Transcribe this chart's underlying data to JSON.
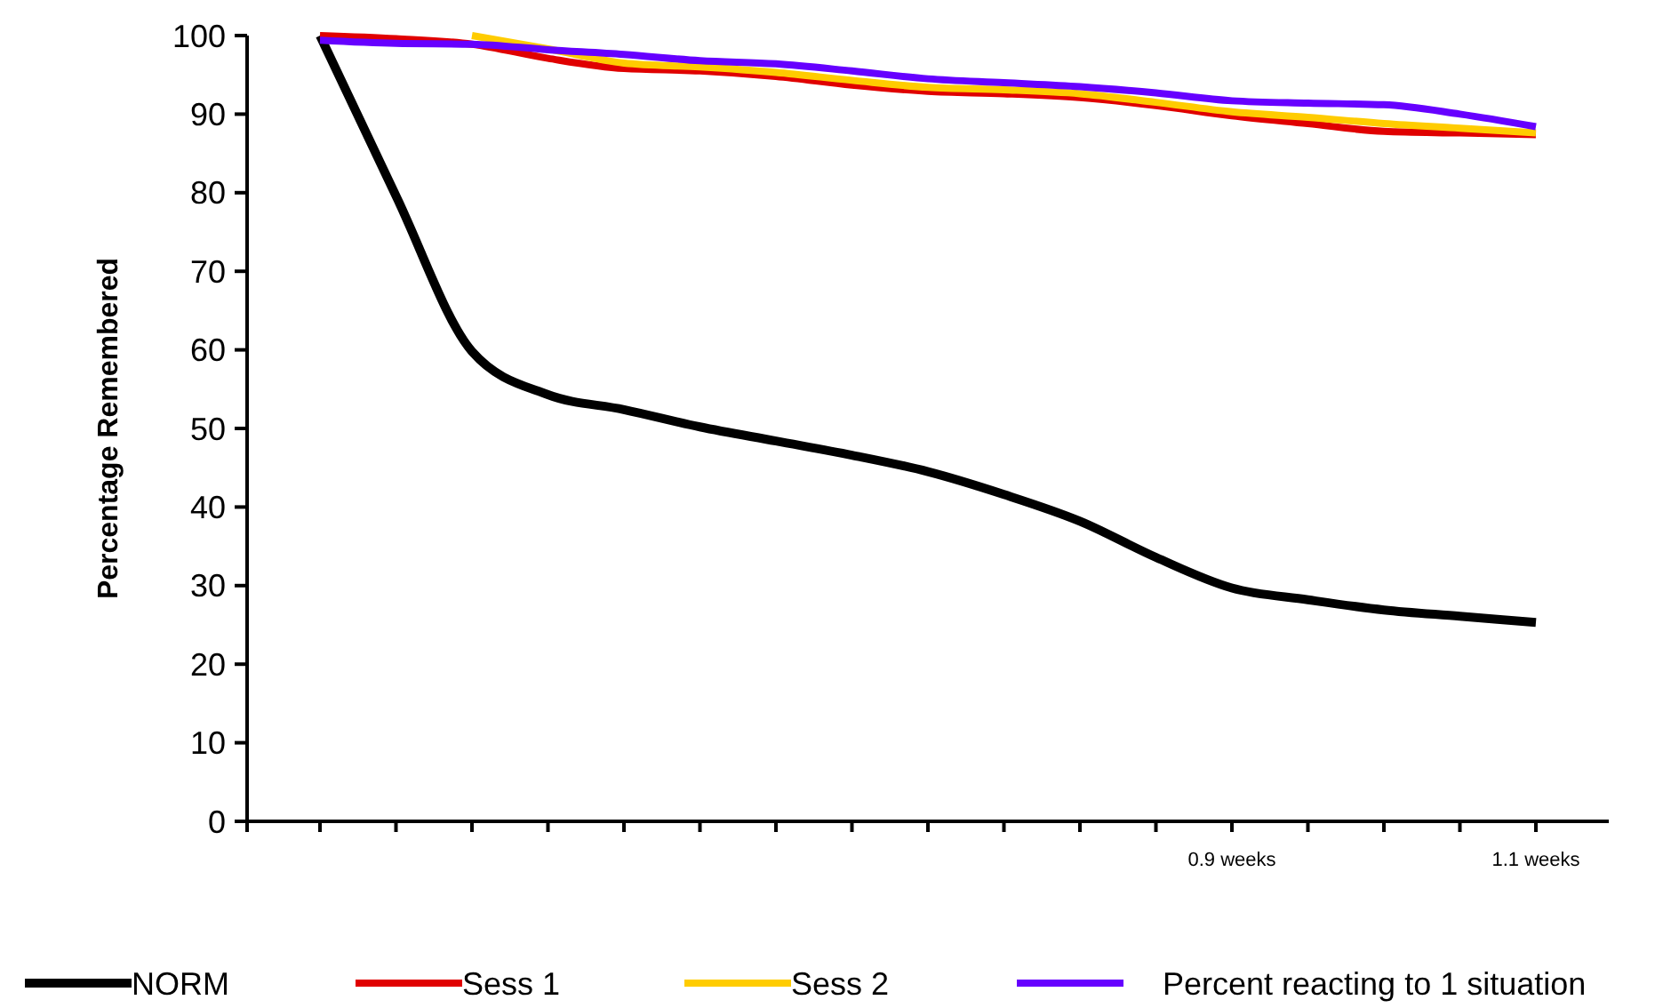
{
  "chart_data": {
    "type": "line",
    "ylabel": "Percentage Remembered",
    "categories": [
      null,
      null,
      null,
      null,
      null,
      null,
      null,
      null,
      null,
      null,
      null,
      null,
      "0.9 weeks",
      null,
      null,
      null,
      "1.1 weeks"
    ],
    "ylim": [
      0,
      100
    ],
    "yticks": [
      0,
      10,
      20,
      30,
      40,
      50,
      60,
      70,
      80,
      90,
      100
    ],
    "grid": false,
    "legend": "bottom",
    "marker": "none",
    "line_style": "solid",
    "series": [
      {
        "name": "NORM",
        "color": "#000000",
        "values": [
          100,
          79.6,
          59.8,
          54.3,
          52.4,
          50.2,
          48.4,
          46.6,
          44.5,
          41.6,
          38.2,
          33.6,
          29.7,
          28.2,
          26.9,
          26.1,
          25.3
        ]
      },
      {
        "name": "Sess 1",
        "color": "#e00000",
        "values": [
          100,
          99.6,
          98.9,
          97.1,
          95.8,
          95.5,
          94.8,
          93.7,
          92.9,
          92.6,
          92.1,
          91.1,
          89.8,
          88.8,
          87.8,
          87.6,
          87.4
        ]
      },
      {
        "name": "Sess 2",
        "color": "#ffcc00",
        "values": [
          null,
          null,
          100,
          98.3,
          96.5,
          96,
          95.3,
          94.3,
          93.4,
          93.1,
          92.6,
          91.5,
          90.3,
          89.6,
          88.8,
          88.2,
          87.6
        ]
      },
      {
        "name": "Percent reacting to 1 situation",
        "color": "#6600ff",
        "values": [
          99.4,
          99,
          98.9,
          98.2,
          97.6,
          96.8,
          96.4,
          95.5,
          94.5,
          94,
          93.5,
          92.7,
          91.7,
          91.4,
          91.2,
          90,
          88.4
        ]
      }
    ]
  }
}
